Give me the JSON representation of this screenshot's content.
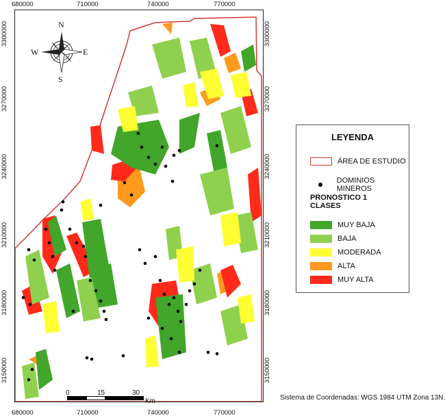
{
  "axes": {
    "x_ticks": [
      "680000",
      "710000",
      "740000",
      "770000"
    ],
    "y_ticks": [
      "3300000",
      "3270000",
      "3240000",
      "3210000",
      "3180000",
      "3150000"
    ]
  },
  "compass": {
    "n": "N",
    "s": "S",
    "e": "E",
    "w": "W"
  },
  "legend": {
    "title": "LEYENDA",
    "study_area": "ÁREA DE ESTUDIO",
    "mining": "DOMINIOS MINEROS",
    "subtitle_line1": "PRONOSTICO 1",
    "subtitle_line2": "CLASES",
    "classes": [
      {
        "label": "MUY BAJA",
        "color": "#41a62a"
      },
      {
        "label": "BAJA",
        "color": "#8fd14f"
      },
      {
        "label": "MODERADA",
        "color": "#ffff33"
      },
      {
        "label": "ALTA",
        "color": "#ff9a1f"
      },
      {
        "label": "MUY ALTA",
        "color": "#ff2a1a"
      }
    ]
  },
  "scale_bar": {
    "labels": [
      "0",
      "15",
      "30"
    ],
    "unit": "Km"
  },
  "crs": "Sistema de Coordenadas: WGS 1984 UTM Zona 13N.",
  "colors": {
    "boundary": "#d13a32",
    "dot": "#000000"
  }
}
